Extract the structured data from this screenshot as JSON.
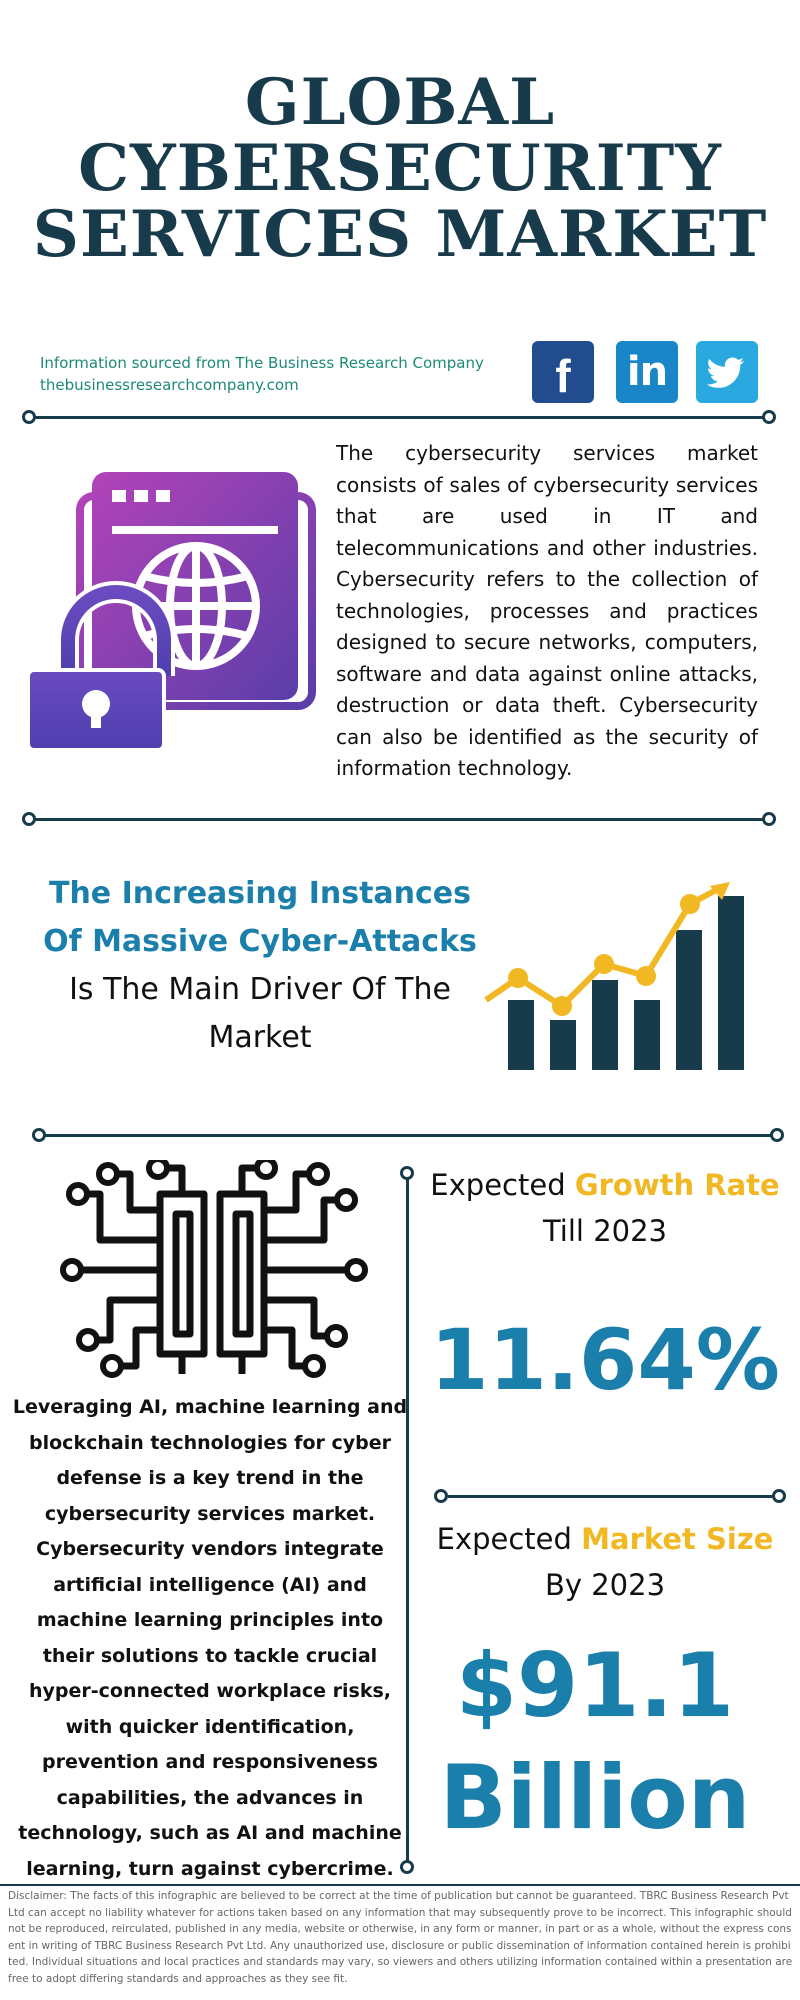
{
  "title": {
    "line1": "GLOBAL",
    "line2": "CYBERSECURITY",
    "line3": "SERVICES MARKET"
  },
  "source": {
    "line1": "Information sourced from The Business Research Company",
    "line2": "thebusinessresearchcompany.com"
  },
  "social": {
    "facebook": "f",
    "linkedin": "in",
    "twitter": "t"
  },
  "description": "The cybersecurity services market consists of sales of cybersecurity services that are used in IT and telecommunications and other industries. Cybersecurity refers to the collection of technologies, processes and practices designed to secure networks, computers, software and data against online attacks, destruction or data theft. Cybersecurity can also be identified as the security of information technology.",
  "driver": {
    "highlight": "The Increasing Instances Of Massive Cyber-Attacks",
    "rest": "Is The Main Driver Of The Market"
  },
  "trend": "Leveraging AI, machine learning and blockchain technologies for cyber defense is a key trend in the cybersecurity services market. Cybersecurity vendors integrate artificial intelligence (AI) and machine learning principles into their solutions to tackle crucial hyper-connected workplace risks, with quicker identification, prevention and responsiveness capabilities, the advances in technology, such as AI and machine learning, turn against cybercrime.",
  "growth": {
    "prefix": "Expected",
    "highlight": "Growth Rate",
    "suffix": "Till 2023",
    "value": "11.64%"
  },
  "market_size": {
    "prefix": "Expected",
    "highlight": "Market Size",
    "suffix": "By 2023",
    "value_line1": "$91.1",
    "value_line2": "Billion"
  },
  "disclaimer": "Disclaimer: The facts of this infographic are believed to be correct at the time of publication but cannot be guaranteed. TBRC Business Research Pvt Ltd can accept no liability whatever for actions taken based on any information that may subsequently prove to be incorrect. This infographic should not be reproduced, reirculated, published in any media, website or otherwise, in any form or manner, in part or as a whole, without the express consent in writing of TBRC Business Research Pvt Ltd. Any unauthorized use, disclosure or public dissemination of information contained herein is prohibited. Individual situations and local practices and standards may vary, so viewers and others utilizing information contained within a presentation are free to adopt differing standards and approaches as they see fit.",
  "colors": {
    "navy": "#183b4c",
    "teal_blue": "#1a7fab",
    "gold": "#f2b824",
    "green_text": "#1d8a77",
    "purple": "#8b3fb8"
  }
}
